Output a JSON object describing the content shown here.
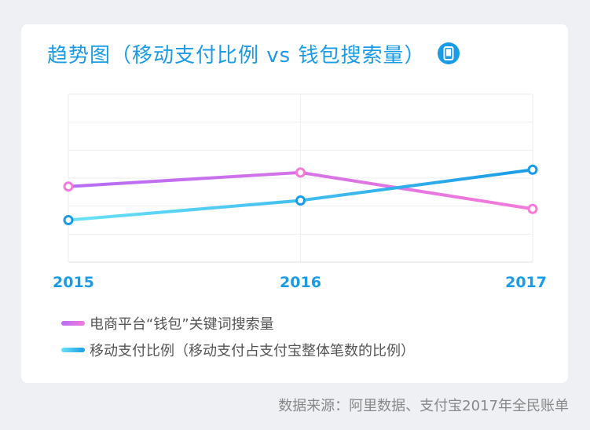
{
  "title": "趋势图（移动支付比例 vs 钱包搜索量）",
  "source": "数据来源：阿里数据、支付宝2017年全民账单",
  "chart_data": {
    "type": "line",
    "categories": [
      "2015",
      "2016",
      "2017"
    ],
    "ylim": [
      0,
      6
    ],
    "grid": true,
    "legend_position": "bottom-left",
    "series": [
      {
        "name": "电商平台“钱包”关键词搜索量",
        "values": [
          2.7,
          3.2,
          1.9
        ],
        "color_start": "#b56cf5",
        "color_end": "#f57ad9",
        "marker_color": "#f57ad9"
      },
      {
        "name": "移动支付比例（移动支付占支付宝整体笔数的比例）",
        "values": [
          1.5,
          2.2,
          3.3
        ],
        "color_start": "#6be2f7",
        "color_end": "#1a9be6",
        "marker_color": "#1a9be6"
      }
    ]
  },
  "colors": {
    "accent": "#1a9be6",
    "grid": "#eeeeee",
    "legend_text": "#555555"
  },
  "icons": {
    "title_badge": "mobile-phone-icon"
  }
}
